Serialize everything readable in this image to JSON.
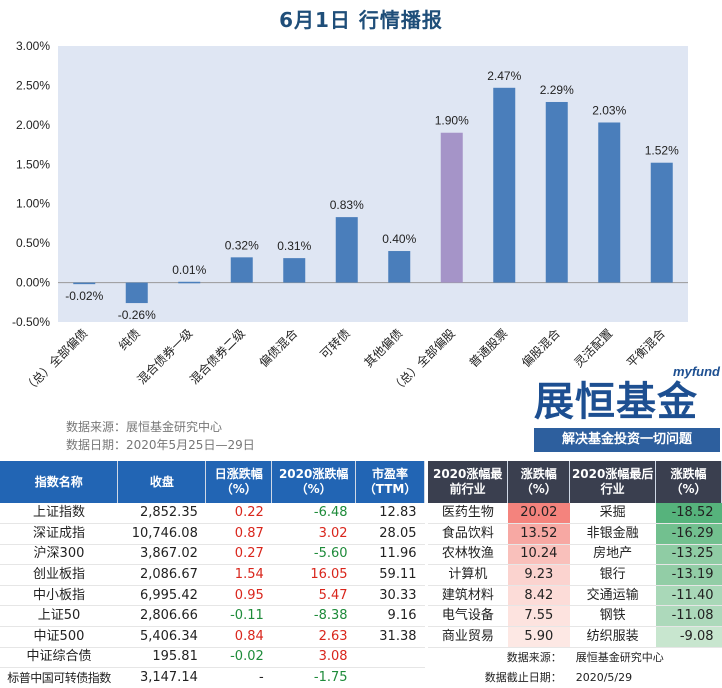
{
  "page": {
    "title": "6月1日  行情播报"
  },
  "chart_data": {
    "type": "bar",
    "categories": [
      "（总）全部偏债",
      "纯债",
      "混合债券一级",
      "混合债券二级",
      "偏债混合",
      "可转债",
      "其他偏债",
      "（总）全部偏股",
      "普通股票",
      "偏股混合",
      "灵活配置",
      "平衡混合"
    ],
    "values": [
      -0.02,
      -0.26,
      0.01,
      0.32,
      0.31,
      0.83,
      0.4,
      1.9,
      2.47,
      2.29,
      2.03,
      1.52
    ],
    "value_labels": [
      "-0.02%",
      "-0.26%",
      "0.01%",
      "0.32%",
      "0.31%",
      "0.83%",
      "0.40%",
      "1.90%",
      "2.47%",
      "2.29%",
      "2.03%",
      "1.52%"
    ],
    "yticks": [
      "3.00%",
      "2.50%",
      "2.00%",
      "1.50%",
      "1.00%",
      "0.50%",
      "0.00%",
      "-0.50%"
    ],
    "ylim": [
      -0.5,
      3.0
    ],
    "grid": false,
    "colors": {
      "default": "#4a7ebb",
      "highlight": "#a594c8",
      "plot_bg": "#dfe6f3"
    },
    "highlight_index": 7
  },
  "source": {
    "line1": "数据来源：展恒基金研究中心",
    "line2": "数据日期：2020年5月25日—29日"
  },
  "brand": {
    "tag": "myfund",
    "name": "展恒基金",
    "slogan": "解决基金投资一切问题"
  },
  "index_table": {
    "headers": [
      "指数名称",
      "收盘",
      "日涨跌幅（%）",
      "2020涨跌幅（%）",
      "市盈率（TTM）"
    ],
    "rows": [
      {
        "name": "上证指数",
        "close": "2,852.35",
        "day": "0.22",
        "ytd": "-6.48",
        "pe": "12.83"
      },
      {
        "name": "深证成指",
        "close": "10,746.08",
        "day": "0.87",
        "ytd": "3.02",
        "pe": "28.05"
      },
      {
        "name": "沪深300",
        "close": "3,867.02",
        "day": "0.27",
        "ytd": "-5.60",
        "pe": "11.96"
      },
      {
        "name": "创业板指",
        "close": "2,086.67",
        "day": "1.54",
        "ytd": "16.05",
        "pe": "59.11"
      },
      {
        "name": "中小板指",
        "close": "6,995.42",
        "day": "0.95",
        "ytd": "5.47",
        "pe": "30.33"
      },
      {
        "name": "上证50",
        "close": "2,806.66",
        "day": "-0.11",
        "ytd": "-8.38",
        "pe": "9.16"
      },
      {
        "name": "中证500",
        "close": "5,406.34",
        "day": "0.84",
        "ytd": "2.63",
        "pe": "31.38"
      },
      {
        "name": "中证综合债",
        "close": "195.81",
        "day": "-0.02",
        "ytd": "3.08",
        "pe": ""
      },
      {
        "name": "标普中国可转债指数",
        "close": "3,147.14",
        "day": "-",
        "ytd": "-1.75",
        "pe": ""
      }
    ]
  },
  "industry_table": {
    "headers": [
      "2020涨幅最前行业",
      "涨跌幅（%）",
      "2020涨幅最后行业",
      "涨跌幅（%）"
    ],
    "rows": [
      {
        "top": "医药生物",
        "top_pct": "20.02",
        "bottom": "采掘",
        "bottom_pct": "-18.52"
      },
      {
        "top": "食品饮料",
        "top_pct": "13.52",
        "bottom": "非银金融",
        "bottom_pct": "-16.29"
      },
      {
        "top": "农林牧渔",
        "top_pct": "10.24",
        "bottom": "房地产",
        "bottom_pct": "-13.25"
      },
      {
        "top": "计算机",
        "top_pct": "9.23",
        "bottom": "银行",
        "bottom_pct": "-13.19"
      },
      {
        "top": "建筑材料",
        "top_pct": "8.42",
        "bottom": "交通运输",
        "bottom_pct": "-11.40"
      },
      {
        "top": "电气设备",
        "top_pct": "7.55",
        "bottom": "钢铁",
        "bottom_pct": "-11.08"
      },
      {
        "top": "商业贸易",
        "top_pct": "5.90",
        "bottom": "纺织服装",
        "bottom_pct": "-9.08"
      }
    ],
    "footer": {
      "src_label": "数据来源：",
      "src_value": "展恒基金研究中心",
      "date_label": "数据截止日期：",
      "date_value": "2020/5/29"
    },
    "heat_colors": {
      "top": [
        "#f4837d",
        "#f7a8a3",
        "#f9c0bb",
        "#fbd3cf",
        "#fcdcd8",
        "#fde3df",
        "#fde8e4"
      ],
      "bottom": [
        "#56b37c",
        "#72c08f",
        "#8fcca4",
        "#92cda6",
        "#a9d8b8",
        "#add9bb",
        "#c8e6cf"
      ]
    }
  }
}
